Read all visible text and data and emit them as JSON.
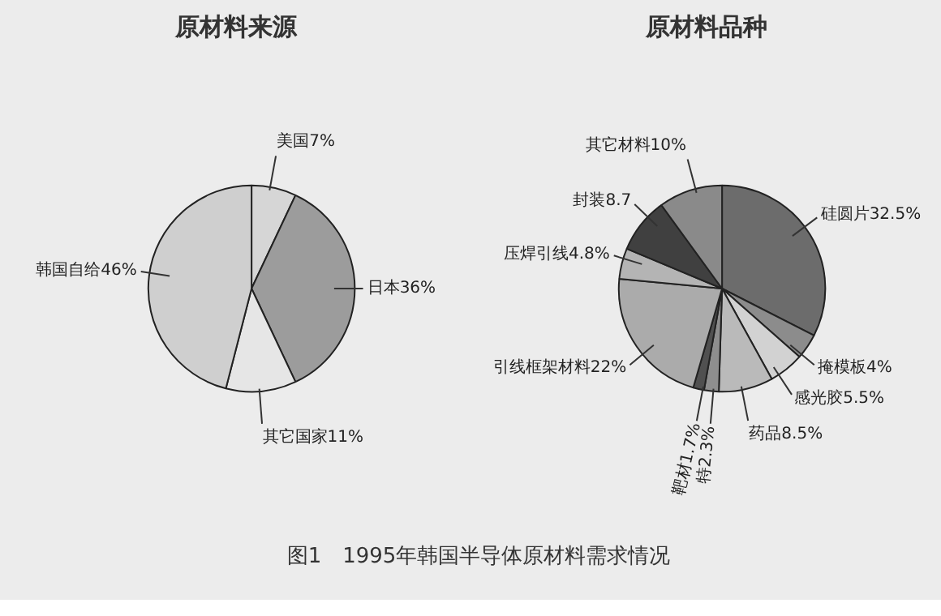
{
  "chart_data": [
    {
      "type": "pie",
      "title": "原材料来源",
      "categories": [
        "美国",
        "日本",
        "其它国家",
        "韩国自给"
      ],
      "values": [
        7,
        36,
        11,
        46
      ],
      "value_labels": [
        "7%",
        "36%",
        "11%",
        "46%"
      ],
      "colors": [
        "#d6d6d6",
        "#9c9c9c",
        "#e6e6e6",
        "#cfcfcf"
      ],
      "annotations": [
        "图1　1995年韩国半导体原材料需求情况"
      ]
    },
    {
      "type": "pie",
      "title": "原材料品种",
      "categories": [
        "硅圆片",
        "掩模板",
        "感光胶",
        "药品",
        "特",
        "靶材",
        "引线框架材料",
        "压焊引线",
        "封装",
        "其它材料"
      ],
      "values": [
        32.5,
        4,
        5.5,
        8.5,
        2.3,
        1.7,
        22,
        4.8,
        8.7,
        10
      ],
      "value_labels": [
        "32.5%",
        "4%",
        "5.5%",
        "8.5%",
        "2.3%",
        "1.7%",
        "22%",
        "4.8%",
        "8.7",
        "10%"
      ],
      "colors": [
        "#6c6c6c",
        "#8c8c8c",
        "#d2d2d2",
        "#bababa",
        "#8e8e8e",
        "#505050",
        "#ababab",
        "#b4b4b4",
        "#404040",
        "#8a8a8a"
      ]
    }
  ]
}
